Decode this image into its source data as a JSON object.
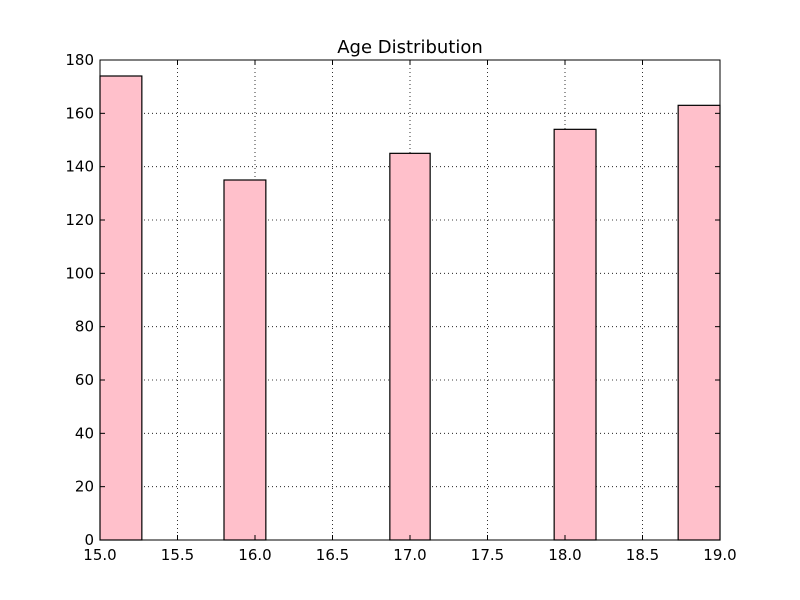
{
  "chart_data": {
    "type": "bar",
    "title": "Age Distribution",
    "xlabel": "",
    "ylabel": "",
    "xlim": [
      15.0,
      19.0
    ],
    "ylim": [
      0,
      180
    ],
    "x_ticks": [
      "15.0",
      "15.5",
      "16.0",
      "16.5",
      "17.0",
      "17.5",
      "18.0",
      "18.5",
      "19.0"
    ],
    "y_ticks": [
      "0",
      "20",
      "40",
      "60",
      "80",
      "100",
      "120",
      "140",
      "160",
      "180"
    ],
    "grid": true,
    "bins": [
      {
        "x0": 15.0,
        "x1": 15.27,
        "value": 174
      },
      {
        "x0": 15.8,
        "x1": 16.07,
        "value": 135
      },
      {
        "x0": 16.87,
        "x1": 17.13,
        "value": 145
      },
      {
        "x0": 17.93,
        "x1": 18.2,
        "value": 154
      },
      {
        "x0": 18.73,
        "x1": 19.0,
        "value": 163
      }
    ],
    "bar_color": "#ffc0cb",
    "edge_color": "#000000"
  }
}
